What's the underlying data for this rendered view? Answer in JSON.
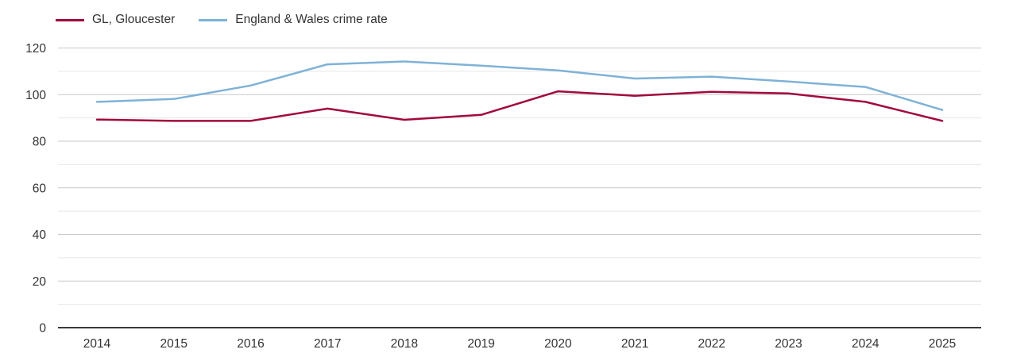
{
  "legend": {
    "items": [
      {
        "label": "GL, Gloucester",
        "color": "#a2093c"
      },
      {
        "label": "England & Wales crime rate",
        "color": "#7fb2d7"
      }
    ]
  },
  "chart_data": {
    "type": "line",
    "title": "",
    "xlabel": "",
    "ylabel": "",
    "x": [
      "2014",
      "2015",
      "2016",
      "2017",
      "2018",
      "2019",
      "2020",
      "2021",
      "2022",
      "2023",
      "2024",
      "2025"
    ],
    "series": [
      {
        "name": "GL, Gloucester",
        "color": "#a2093c",
        "values": [
          89.3,
          88.7,
          88.7,
          94.0,
          89.2,
          91.3,
          101.4,
          99.5,
          101.2,
          100.5,
          96.9,
          88.7
        ]
      },
      {
        "name": "England & Wales crime rate",
        "color": "#7fb2d7",
        "values": [
          96.9,
          98.1,
          103.9,
          113.0,
          114.2,
          112.4,
          110.4,
          106.9,
          107.7,
          105.6,
          103.3,
          93.4
        ]
      }
    ],
    "ylim": [
      0,
      120
    ],
    "yticks": [
      0,
      20,
      40,
      60,
      80,
      100,
      120
    ],
    "minor_ytick_step": 10,
    "grid": "horizontal, major and minor gridlines",
    "legend_position": "top-left",
    "axis_color": "#3a3a3a",
    "major_grid_color": "#c9c9c9",
    "minor_grid_color": "#e8e8e8",
    "tick_label_color": "#333333"
  }
}
